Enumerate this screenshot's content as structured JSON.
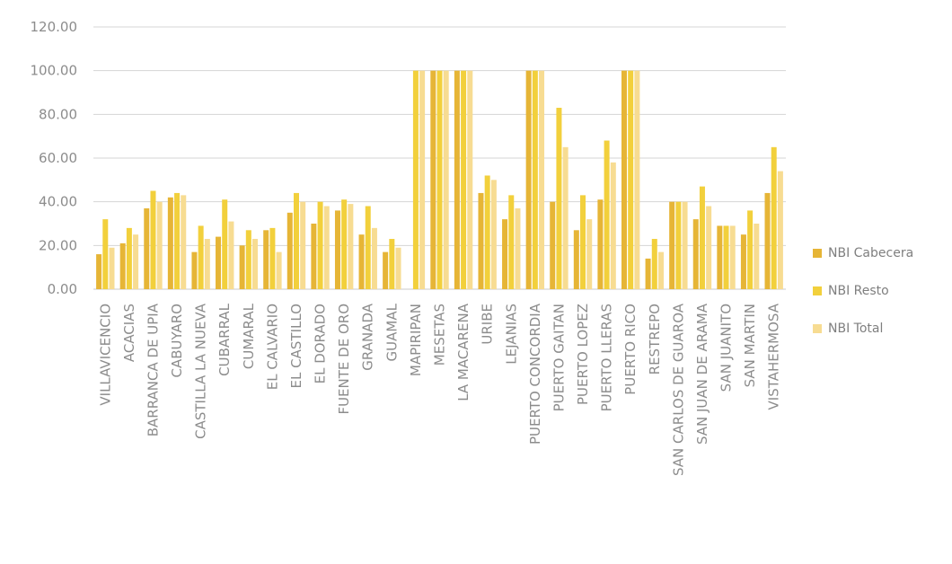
{
  "chart_data": {
    "type": "bar",
    "title": "",
    "xlabel": "",
    "ylabel": "",
    "ylim": [
      0,
      120
    ],
    "yticks": [
      "0.00",
      "20.00",
      "40.00",
      "60.00",
      "80.00",
      "100.00",
      "120.00"
    ],
    "grid": true,
    "legend_position": "right",
    "categories": [
      "VILLAVICENCIO",
      "ACACIAS",
      "BARRANCA DE UPIA",
      "CABUYARO",
      "CASTILLA LA NUEVA",
      "CUBARRAL",
      "CUMARAL",
      "EL CALVARIO",
      "EL CASTILLO",
      "EL DORADO",
      "FUENTE DE ORO",
      "GRANADA",
      "GUAMAL",
      "MAPIRIPAN",
      "MESETAS",
      "LA MACARENA",
      "URIBE",
      "LEJANIAS",
      "PUERTO CONCORDIA",
      "PUERTO GAITAN",
      "PUERTO LOPEZ",
      "PUERTO LLERAS",
      "PUERTO RICO",
      "RESTREPO",
      "SAN CARLOS DE GUAROA",
      "SAN JUAN DE ARAMA",
      "SAN JUANITO",
      "SAN MARTIN",
      "VISTAHERMOSA"
    ],
    "series": [
      {
        "name": "NBI Cabecera",
        "color": "#e6b536",
        "values": [
          16,
          21,
          37,
          42,
          17,
          24,
          20,
          27,
          35,
          30,
          36,
          25,
          17,
          0,
          100,
          100,
          44,
          32,
          100,
          40,
          27,
          41,
          100,
          14,
          40,
          32,
          29,
          25,
          44
        ]
      },
      {
        "name": "NBI Resto",
        "color": "#f2d03c",
        "values": [
          32,
          28,
          45,
          44,
          29,
          41,
          27,
          28,
          44,
          40,
          41,
          38,
          23,
          100,
          100,
          100,
          52,
          43,
          100,
          83,
          43,
          68,
          100,
          23,
          40,
          47,
          29,
          36,
          65
        ]
      },
      {
        "name": "NBI Total",
        "color": "#f7dc92",
        "values": [
          19,
          25,
          40,
          43,
          23,
          31,
          23,
          17,
          40,
          38,
          39,
          28,
          19,
          100,
          100,
          100,
          50,
          37,
          100,
          65,
          32,
          58,
          100,
          17,
          40,
          38,
          29,
          30,
          54
        ]
      }
    ]
  }
}
